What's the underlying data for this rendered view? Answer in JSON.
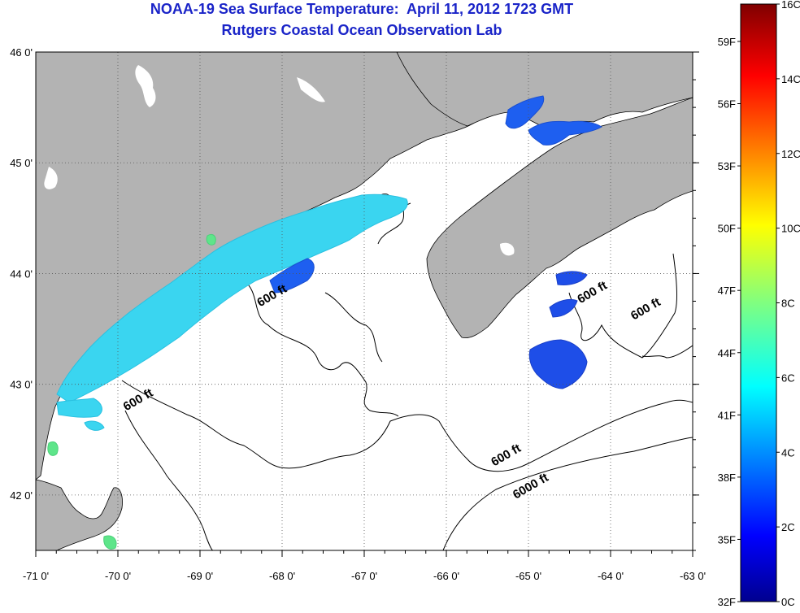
{
  "title": {
    "line1": "NOAA-19 Sea Surface Temperature:  April 11, 2012 1723 GMT",
    "line2": "Rutgers Coastal Ocean Observation Lab"
  },
  "map": {
    "lon_range": [
      -71,
      -63
    ],
    "lat_range": [
      41.5,
      46
    ],
    "grid": "dotted",
    "x_ticks": [
      "-71 0'",
      "-70 0'",
      "-69 0'",
      "-68 0'",
      "-67 0'",
      "-66 0'",
      "-65 0'",
      "-64 0'",
      "-63 0'"
    ],
    "y_ticks": [
      "46 0'",
      "45 0'",
      "44 0'",
      "43 0'",
      "42 0'"
    ],
    "land_color": "#b3b3b3",
    "no_data_color": "#ffffff",
    "contour_labels": [
      {
        "text": "600 ft",
        "lon": -68.1,
        "lat": 43.77
      },
      {
        "text": "600 ft",
        "lon": -69.73,
        "lat": 42.83
      },
      {
        "text": "600 ft",
        "lon": -65.25,
        "lat": 42.33
      },
      {
        "text": "6000 ft",
        "lon": -64.95,
        "lat": 42.05
      },
      {
        "text": "600 ft",
        "lon": -64.2,
        "lat": 43.8
      },
      {
        "text": "600 ft",
        "lon": -63.55,
        "lat": 43.65
      }
    ]
  },
  "colorbar": {
    "colormap": "jet",
    "min_c": 0,
    "max_c": 16,
    "celsius_labels": [
      "16C",
      "14C",
      "12C",
      "10C",
      "8C",
      "6C",
      "4C",
      "2C",
      "0C"
    ],
    "fahrenheit_labels": [
      "59F",
      "56F",
      "53F",
      "50F",
      "47F",
      "44F",
      "41F",
      "38F",
      "35F",
      "32F"
    ],
    "fahrenheit_values": [
      59,
      56,
      53,
      50,
      47,
      44,
      41,
      38,
      35,
      32
    ]
  }
}
